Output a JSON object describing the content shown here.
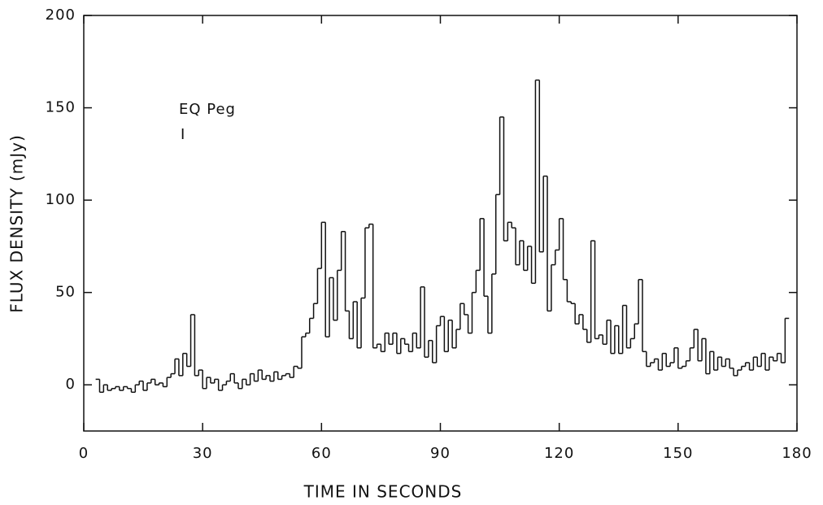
{
  "chart_data": {
    "type": "step",
    "xlabel": "TIME IN SECONDS",
    "ylabel": "FLUX DENSITY (mJy)",
    "annotations": [
      "EQ Peg",
      "I"
    ],
    "color": "#111111",
    "xlim": [
      0,
      180
    ],
    "xticks": [
      0,
      30,
      60,
      90,
      120,
      150,
      180
    ],
    "ylim": [
      -25,
      200
    ],
    "yticks": [
      0,
      50,
      100,
      150,
      200
    ],
    "grid": false,
    "x": [
      3,
      4,
      5,
      6,
      7,
      8,
      9,
      10,
      11,
      12,
      13,
      14,
      15,
      16,
      17,
      18,
      19,
      20,
      21,
      22,
      23,
      24,
      25,
      26,
      27,
      28,
      29,
      30,
      31,
      32,
      33,
      34,
      35,
      36,
      37,
      38,
      39,
      40,
      41,
      42,
      43,
      44,
      45,
      46,
      47,
      48,
      49,
      50,
      51,
      52,
      53,
      54,
      55,
      56,
      57,
      58,
      59,
      60,
      61,
      62,
      63,
      64,
      65,
      66,
      67,
      68,
      69,
      70,
      71,
      72,
      73,
      74,
      75,
      76,
      77,
      78,
      79,
      80,
      81,
      82,
      83,
      84,
      85,
      86,
      87,
      88,
      89,
      90,
      91,
      92,
      93,
      94,
      95,
      96,
      97,
      98,
      99,
      100,
      101,
      102,
      103,
      104,
      105,
      106,
      107,
      108,
      109,
      110,
      111,
      112,
      113,
      114,
      115,
      116,
      117,
      118,
      119,
      120,
      121,
      122,
      123,
      124,
      125,
      126,
      127,
      128,
      129,
      130,
      131,
      132,
      133,
      134,
      135,
      136,
      137,
      138,
      139,
      140,
      141,
      142,
      143,
      144,
      145,
      146,
      147,
      148,
      149,
      150,
      151,
      152,
      153,
      154,
      155,
      156,
      157,
      158,
      159,
      160,
      161,
      162,
      163,
      164,
      165,
      166,
      167,
      168,
      169,
      170,
      171,
      172,
      173,
      174,
      175,
      176,
      177
    ],
    "values": [
      3,
      -4,
      0,
      -3,
      -2,
      -1,
      -3,
      -1,
      -2,
      -4,
      0,
      2,
      -3,
      1,
      3,
      0,
      1,
      -1,
      4,
      6,
      14,
      5,
      17,
      10,
      38,
      5,
      8,
      -2,
      4,
      1,
      3,
      -3,
      0,
      2,
      6,
      1,
      -2,
      3,
      0,
      6,
      2,
      8,
      3,
      5,
      2,
      7,
      3,
      5,
      6,
      4,
      10,
      9,
      26,
      28,
      36,
      44,
      63,
      88,
      26,
      58,
      35,
      62,
      83,
      40,
      25,
      45,
      20,
      47,
      85,
      87,
      20,
      22,
      18,
      28,
      22,
      28,
      17,
      25,
      22,
      18,
      28,
      20,
      53,
      15,
      24,
      12,
      32,
      37,
      18,
      35,
      20,
      30,
      44,
      38,
      28,
      50,
      62,
      90,
      48,
      28,
      60,
      103,
      145,
      78,
      88,
      85,
      65,
      78,
      62,
      75,
      55,
      165,
      72,
      113,
      40,
      65,
      73,
      90,
      57,
      45,
      44,
      33,
      38,
      30,
      23,
      78,
      25,
      27,
      22,
      35,
      17,
      32,
      17,
      43,
      20,
      25,
      33,
      57,
      18,
      10,
      12,
      14,
      8,
      17,
      10,
      12,
      20,
      9,
      10,
      13,
      20,
      30,
      13,
      25,
      6,
      18,
      8,
      15,
      10,
      14,
      9,
      5,
      8,
      10,
      12,
      8,
      15,
      10,
      17,
      8,
      15,
      13,
      17,
      12,
      36
    ]
  }
}
